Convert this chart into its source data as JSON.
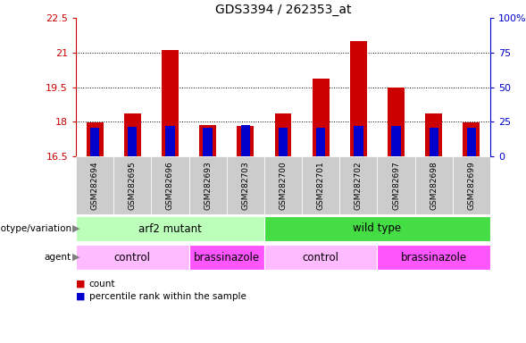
{
  "title": "GDS3394 / 262353_at",
  "samples": [
    "GSM282694",
    "GSM282695",
    "GSM282696",
    "GSM282693",
    "GSM282703",
    "GSM282700",
    "GSM282701",
    "GSM282702",
    "GSM282697",
    "GSM282698",
    "GSM282699"
  ],
  "count_values": [
    17.97,
    18.35,
    21.1,
    17.85,
    17.8,
    18.35,
    19.85,
    21.5,
    19.5,
    18.35,
    17.97
  ],
  "percentile_values": [
    17.73,
    17.78,
    17.82,
    17.72,
    17.87,
    17.72,
    17.72,
    17.82,
    17.82,
    17.72,
    17.72
  ],
  "ymin": 16.5,
  "ymax": 22.5,
  "yticks": [
    16.5,
    18.0,
    19.5,
    21.0,
    22.5
  ],
  "ytick_labels": [
    "16.5",
    "18",
    "19.5",
    "21",
    "22.5"
  ],
  "y2min": 0,
  "y2max": 100,
  "y2ticks": [
    0,
    25,
    50,
    75,
    100
  ],
  "y2tick_labels": [
    "0",
    "25",
    "50",
    "75",
    "100%"
  ],
  "bar_color": "#cc0000",
  "percentile_color": "#0000cc",
  "bar_width": 0.45,
  "genotype_groups": [
    {
      "label": "arf2 mutant",
      "start": 0,
      "end": 5,
      "color": "#bbffbb"
    },
    {
      "label": "wild type",
      "start": 5,
      "end": 11,
      "color": "#44dd44"
    }
  ],
  "agent_groups": [
    {
      "label": "control",
      "start": 0,
      "end": 3,
      "color": "#ffbbff"
    },
    {
      "label": "brassinazole",
      "start": 3,
      "end": 5,
      "color": "#ff55ff"
    },
    {
      "label": "control",
      "start": 5,
      "end": 8,
      "color": "#ffbbff"
    },
    {
      "label": "brassinazole",
      "start": 8,
      "end": 11,
      "color": "#ff55ff"
    }
  ],
  "legend_count_color": "#cc0000",
  "legend_percentile_color": "#0000cc",
  "axis_color_left": "#cc0000",
  "axis_color_right": "#0000cc",
  "grid_color": "#000000",
  "background_color": "#ffffff",
  "sample_box_color": "#cccccc",
  "label_text_color": "#555555"
}
